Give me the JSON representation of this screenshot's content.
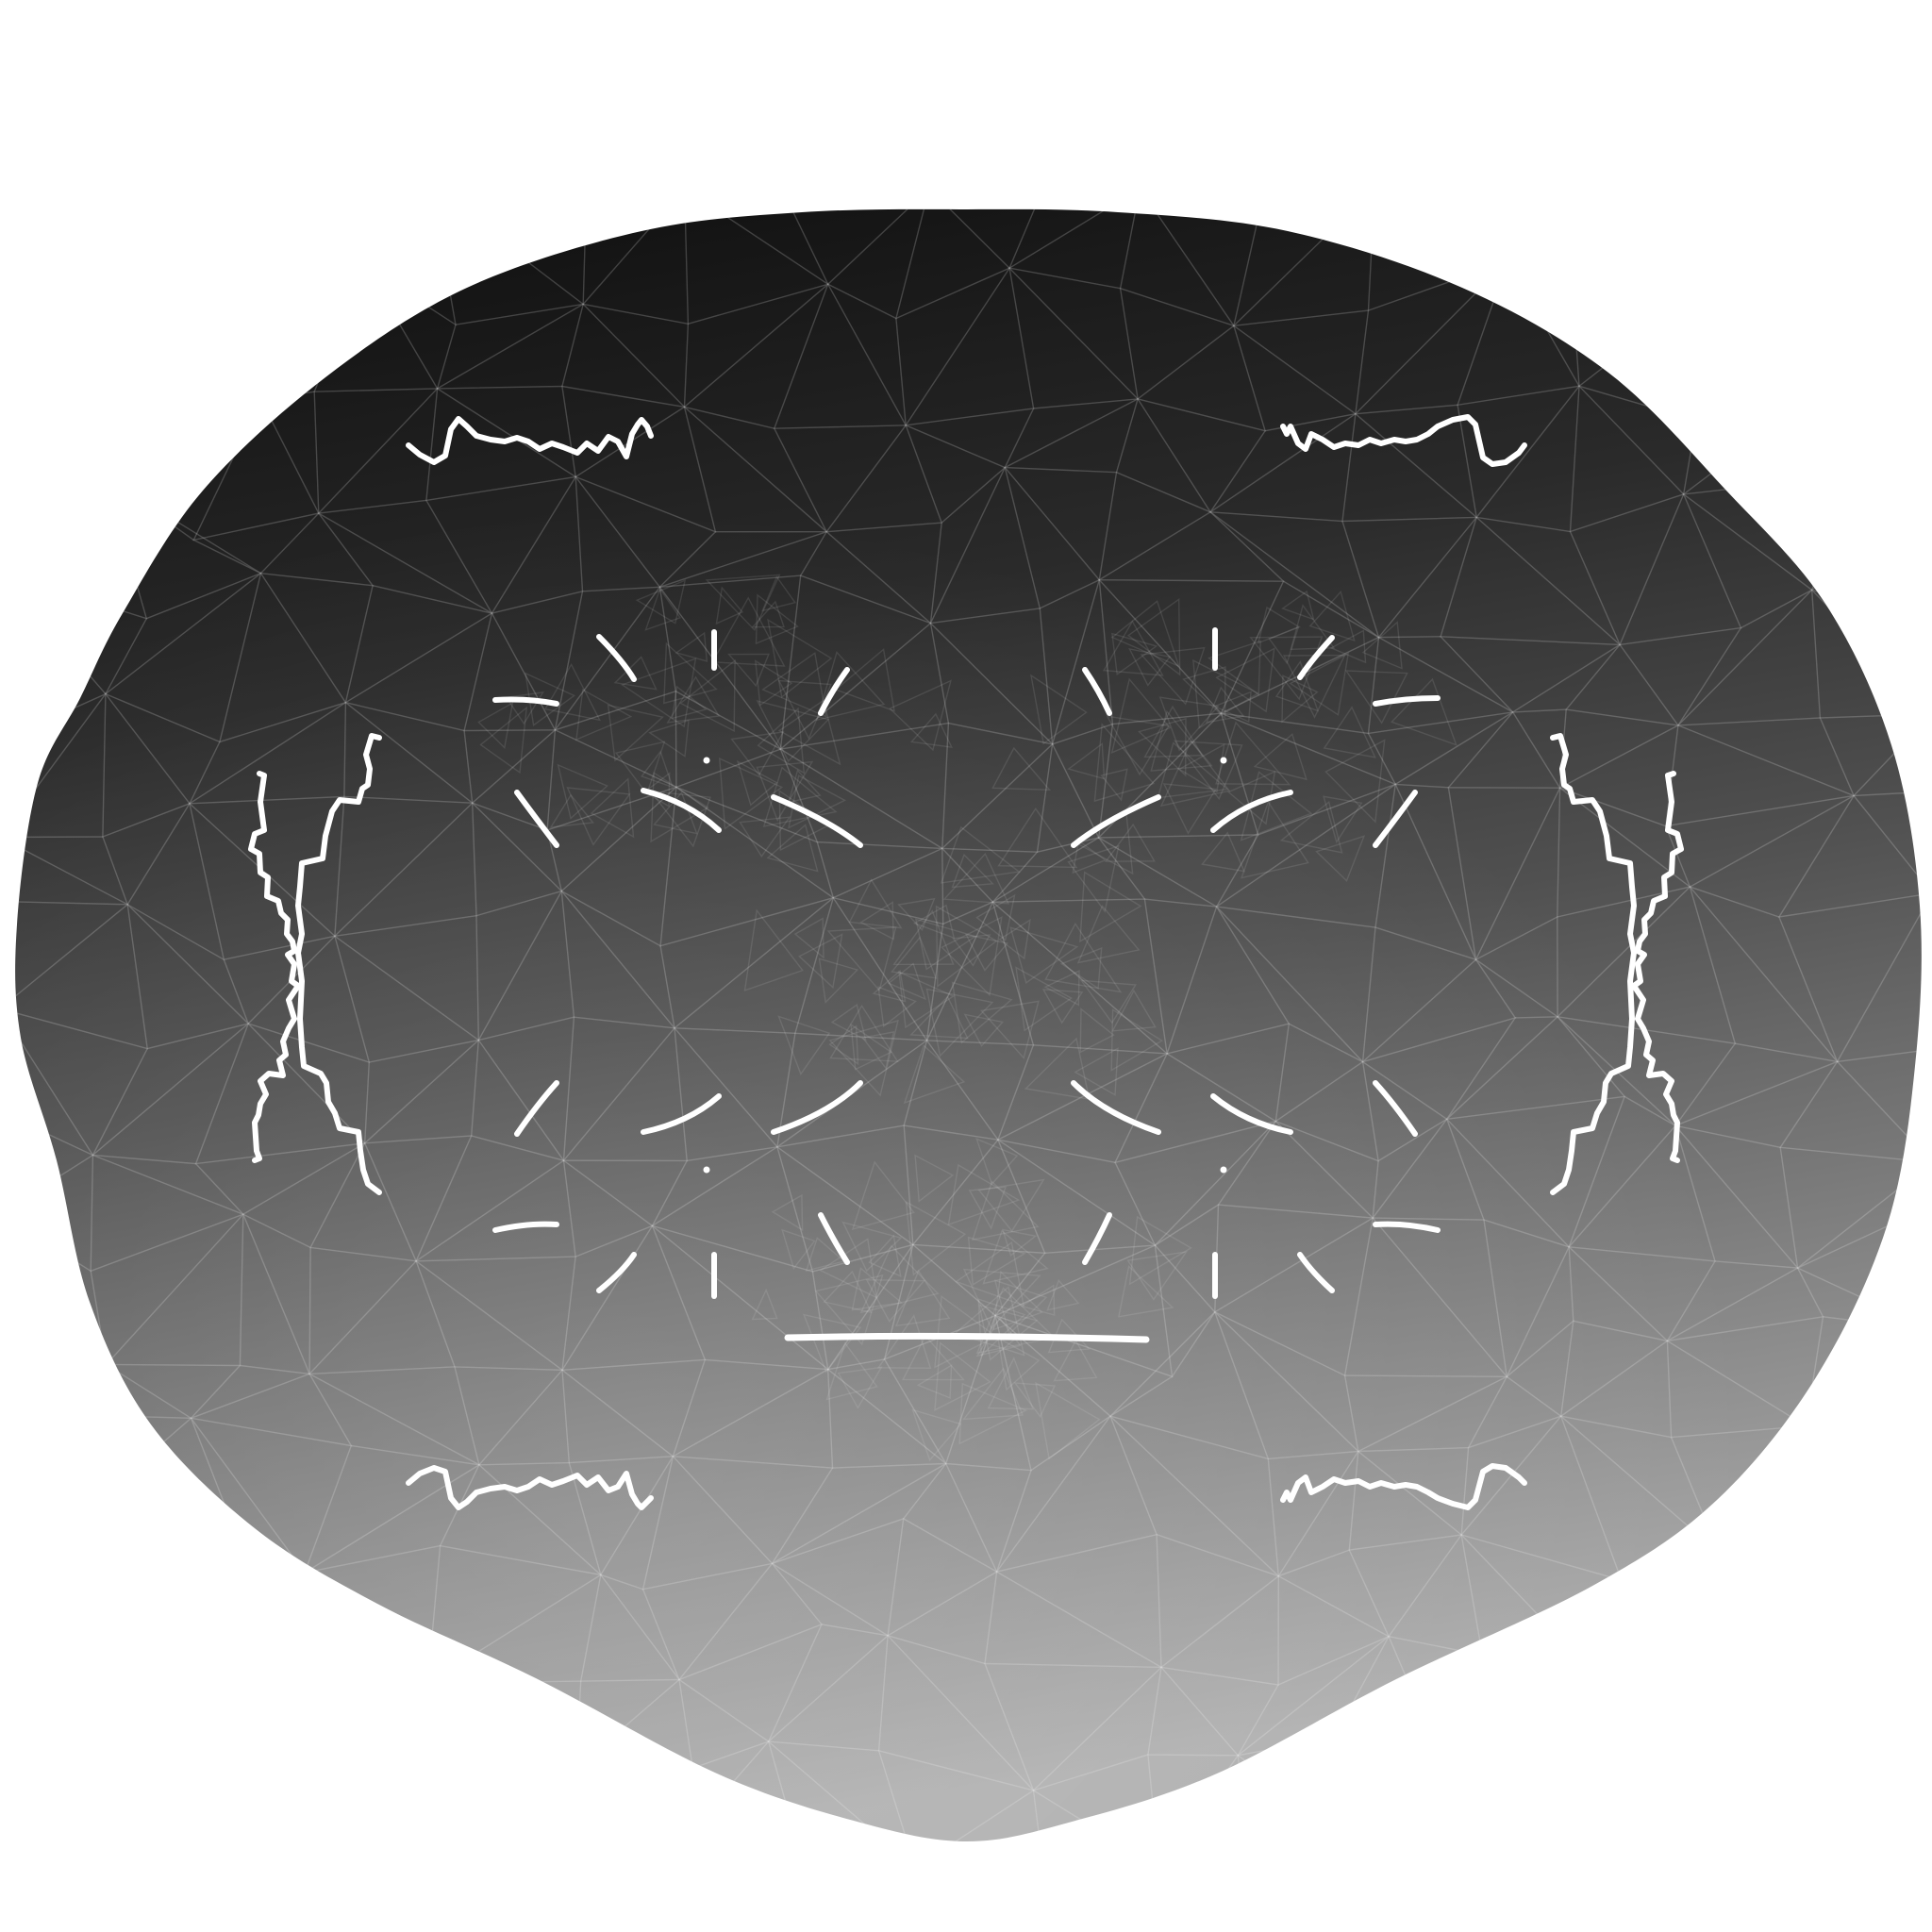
{
  "scene": {
    "subject": "face-mesh",
    "shading_colors": {
      "top": "#141414",
      "upper": "#2a2a2a",
      "middle": "#555555",
      "lower": "#8a8a8a",
      "bottom": "#b0b0b0"
    },
    "mark_color": "#ffffff",
    "background": "#ffffff"
  }
}
